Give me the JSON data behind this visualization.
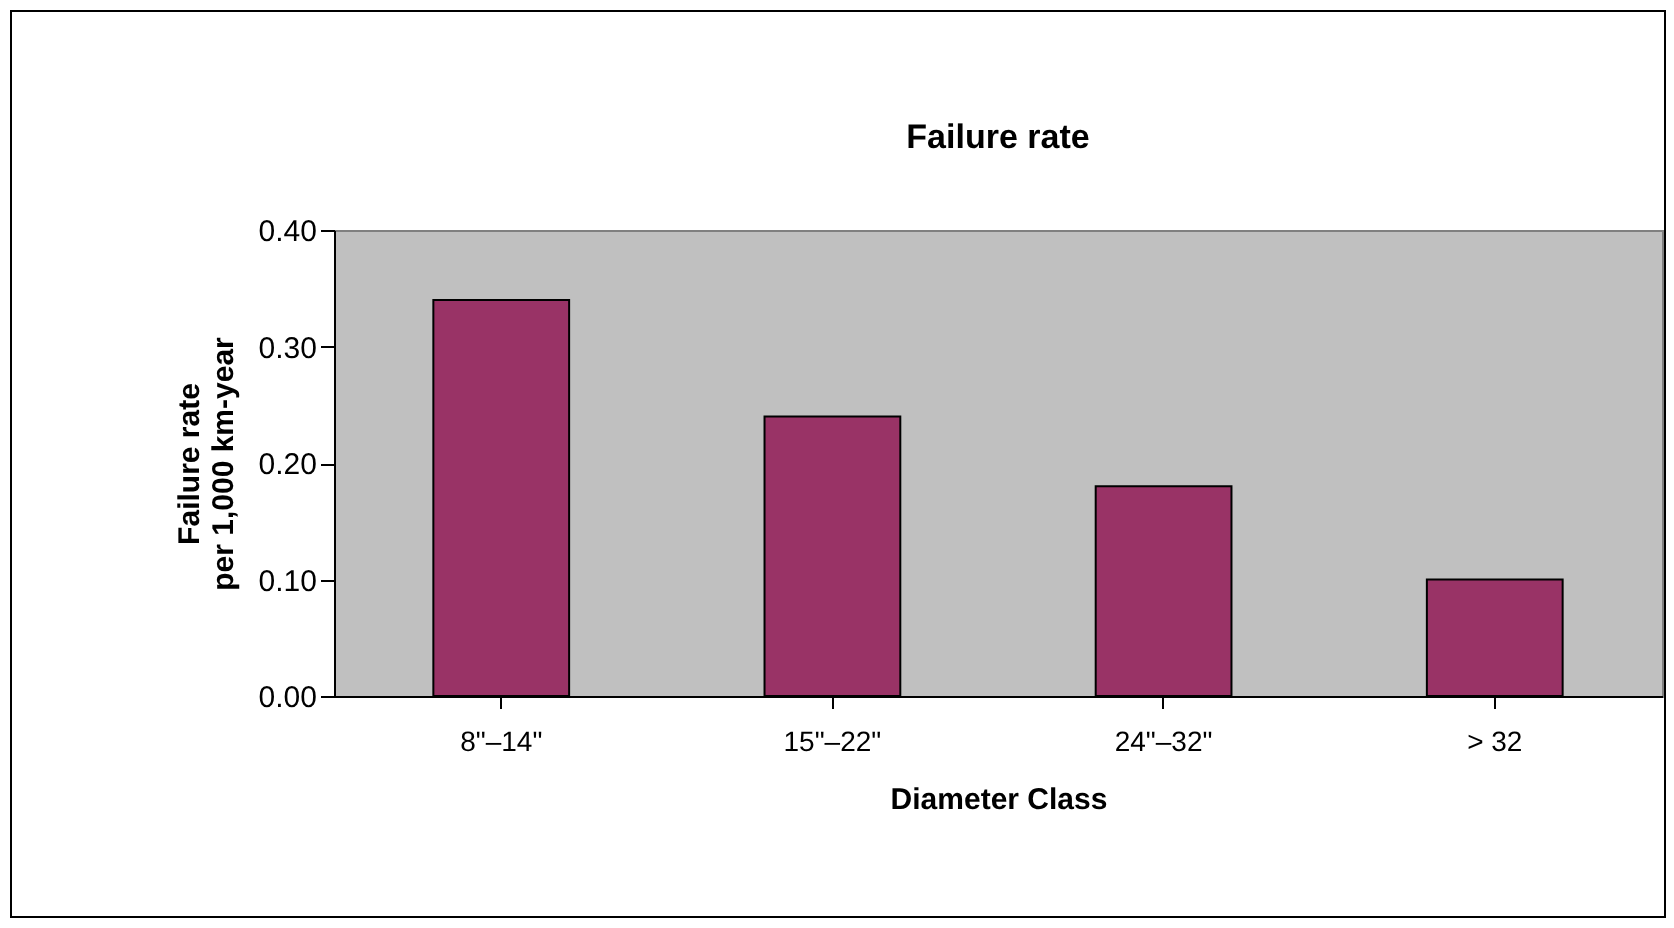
{
  "chart_data": {
    "type": "bar",
    "title": "Failure rate",
    "xlabel": "Diameter Class",
    "ylabel": "Failure rate\nper 1,000 km-year",
    "categories": [
      "8\"–14\"",
      "15\"–22\"",
      "24\"–32\"",
      "> 32"
    ],
    "values": [
      0.34,
      0.24,
      0.18,
      0.1
    ],
    "color": "#993366",
    "ylim": [
      0,
      0.4
    ],
    "yticks": [
      {
        "value": 0,
        "label": "0.00"
      },
      {
        "value": 0.1,
        "label": "0.10"
      },
      {
        "value": 0.2,
        "label": "0.20"
      },
      {
        "value": 0.3,
        "label": "0.30"
      },
      {
        "value": 0.4,
        "label": "0.40"
      }
    ],
    "grid": false
  }
}
